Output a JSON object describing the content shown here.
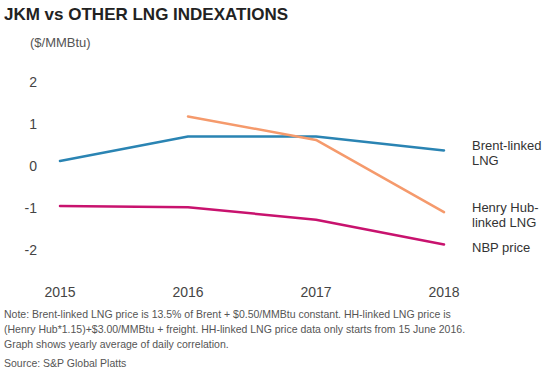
{
  "chart_data": {
    "type": "line",
    "title": "JKM vs OTHER LNG INDEXATIONS",
    "y_label": "($/MMBtu)",
    "categories": [
      "2015",
      "2016",
      "2017",
      "2018"
    ],
    "series": [
      {
        "name": "Brent-linked LNG",
        "color": "#2a84b3",
        "values": [
          0.12,
          0.7,
          0.7,
          0.37
        ]
      },
      {
        "name": "Henry Hub-linked LNG",
        "color": "#f59a6c",
        "values": [
          null,
          1.18,
          0.62,
          -1.1
        ]
      },
      {
        "name": "NBP price",
        "color": "#c8126e",
        "values": [
          -0.95,
          -0.98,
          -1.28,
          -1.87
        ]
      }
    ],
    "ylim": [
      -2,
      2
    ],
    "yticks": [
      -2,
      -1,
      0,
      1,
      2
    ],
    "grid": false,
    "notes": [
      "Note: Brent-linked LNG price is 13.5% of Brent + $0.50/MMBtu constant. HH-linked LNG price is",
      "(Henry Hub*1.15)+$3.00/MMBtu + freight. HH-linked LNG price data only starts from 15 June 2016.",
      "Graph shows yearly average of daily correlation."
    ],
    "source": "Source: S&P Global Platts"
  }
}
